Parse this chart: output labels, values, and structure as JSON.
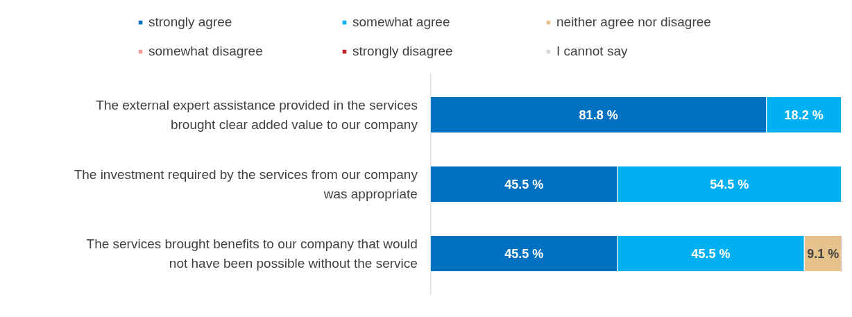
{
  "chart_data": {
    "type": "bar",
    "orientation": "horizontal",
    "stacked": true,
    "legend": "top",
    "grid": false,
    "categories": [
      "The external expert assistance provided in the services brought clear added value to our company",
      "The investment required by the services from our company was appropriate",
      "The services brought benefits to our company that would not have been possible without the service"
    ],
    "xlim": [
      0,
      100
    ],
    "tick_labels": "y",
    "series": [
      {
        "name": "strongly agree",
        "color": "#0070c0",
        "values": [
          81.8,
          45.5,
          45.5
        ],
        "value_labels": [
          "81.8 %",
          "45.5 %",
          "45.5 %"
        ]
      },
      {
        "name": "somewhat agree",
        "color": "#00b0f0",
        "values": [
          18.2,
          54.5,
          45.5
        ],
        "value_labels": [
          "18.2 %",
          "54.5 %",
          "45.5 %"
        ]
      },
      {
        "name": "neither agree nor disagree",
        "color": "#e6c38c",
        "values": [
          0,
          0,
          9.1
        ],
        "value_labels": [
          null,
          null,
          "9.1 %"
        ]
      },
      {
        "name": "somewhat disagree",
        "color": "#f29b9f",
        "values": [
          0,
          0,
          0
        ],
        "value_labels": [
          null,
          null,
          null
        ]
      },
      {
        "name": "strongly disagree",
        "color": "#c0222a",
        "values": [
          0,
          0,
          0
        ],
        "value_labels": [
          null,
          null,
          null
        ]
      },
      {
        "name": "I cannot say",
        "color": "#d9d9d9",
        "values": [
          0,
          0,
          0
        ],
        "value_labels": [
          null,
          null,
          null
        ]
      }
    ]
  }
}
